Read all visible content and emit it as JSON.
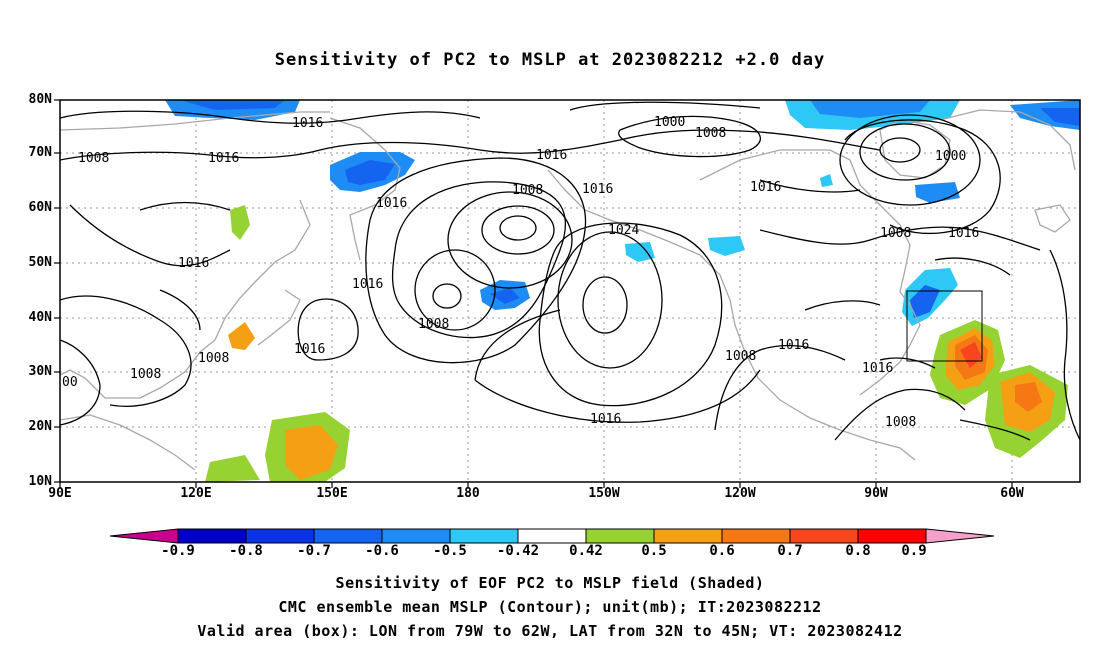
{
  "title": "Sensitivity of PC2 to MSLP at 2023082212 +2.0 day",
  "lat_labels": [
    "80N",
    "70N",
    "60N",
    "50N",
    "40N",
    "30N",
    "20N",
    "10N"
  ],
  "lon_labels": [
    "90E",
    "120E",
    "150E",
    "180",
    "150W",
    "120W",
    "90W",
    "60W"
  ],
  "contour_labels": [
    "1016",
    "1016",
    "1008",
    "1016",
    "1000",
    "1008",
    "1016",
    "1000",
    "1008",
    "1016",
    "1016",
    "1016",
    "1016",
    "1008",
    "1016",
    "1024",
    "1016",
    "1008",
    "1016",
    "1008",
    "1016",
    "1008",
    "1016",
    "1016",
    "1008",
    "1008",
    "00"
  ],
  "colorbar": {
    "tick_labels": [
      "-0.9",
      "-0.8",
      "-0.7",
      "-0.6",
      "-0.5",
      "-0.42",
      "0.42",
      "0.5",
      "0.6",
      "0.7",
      "0.8",
      "0.9"
    ],
    "colors": [
      "#c8008c",
      "#0000c8",
      "#0a32e6",
      "#1464f0",
      "#1e8cf5",
      "#2dc8f5",
      "#ffffff",
      "#96d232",
      "#f5a014",
      "#f57814",
      "#f5461e",
      "#ff0000",
      "#f5a0c8"
    ]
  },
  "captions": [
    "Sensitivity of EOF PC2 to MSLP field (Shaded)",
    "CMC ensemble mean MSLP (Contour); unit(mb); IT:2023082212",
    "Valid area (box): LON from 79W to 62W, LAT from 32N to 45N; VT: 2023082412"
  ]
}
